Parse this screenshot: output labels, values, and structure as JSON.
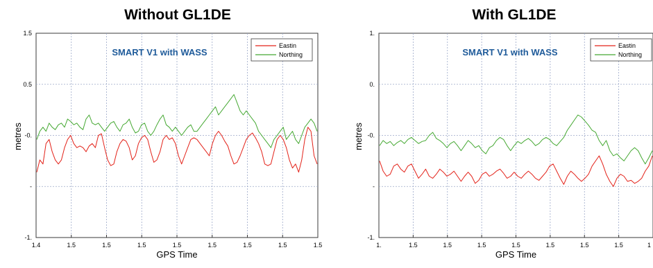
{
  "chart_data": [
    {
      "type": "line",
      "title": "Without GL1DE",
      "xlabel": "GPS Time",
      "ylabel": "metres",
      "x_tick_labels": [
        "1.4",
        "1.5",
        "1.5",
        "1.5",
        "1.5",
        "1.5",
        "1.5",
        "1.5",
        "1.5"
      ],
      "y_tick_labels": [
        "1.5",
        "0.5",
        "-0.",
        "-",
        "-1."
      ],
      "ylim": [
        -1.0,
        1.5
      ],
      "grid": true,
      "legend": "top-right",
      "annotation": "SMART V1 with WASS",
      "series": [
        {
          "name": "Eastin",
          "color": "#e32118",
          "values": [
            -0.2,
            -0.05,
            -0.1,
            0.15,
            0.2,
            0.05,
            -0.05,
            -0.1,
            -0.05,
            0.1,
            0.2,
            0.25,
            0.15,
            0.1,
            0.12,
            0.1,
            0.05,
            0.12,
            0.15,
            0.1,
            0.25,
            0.27,
            0.1,
            -0.05,
            -0.12,
            -0.1,
            0.05,
            0.15,
            0.2,
            0.18,
            0.1,
            -0.05,
            0.0,
            0.15,
            0.22,
            0.25,
            0.2,
            0.05,
            -0.08,
            -0.05,
            0.05,
            0.2,
            0.25,
            0.2,
            0.22,
            0.15,
            0.0,
            -0.1,
            0.0,
            0.1,
            0.2,
            0.22,
            0.2,
            0.15,
            0.1,
            0.05,
            0.0,
            0.15,
            0.25,
            0.3,
            0.25,
            0.18,
            0.12,
            0.0,
            -0.1,
            -0.08,
            0.0,
            0.1,
            0.2,
            0.25,
            0.28,
            0.22,
            0.15,
            0.05,
            -0.1,
            -0.12,
            -0.1,
            0.05,
            0.2,
            0.25,
            0.2,
            0.1,
            -0.05,
            -0.15,
            -0.1,
            -0.2,
            -0.05,
            0.2,
            0.35,
            0.3,
            0.0,
            -0.1
          ]
        },
        {
          "name": "Northing",
          "color": "#45a832",
          "values": [
            0.2,
            0.3,
            0.35,
            0.3,
            0.4,
            0.35,
            0.32,
            0.38,
            0.4,
            0.35,
            0.45,
            0.42,
            0.38,
            0.4,
            0.35,
            0.32,
            0.45,
            0.5,
            0.4,
            0.38,
            0.4,
            0.35,
            0.3,
            0.35,
            0.4,
            0.42,
            0.35,
            0.3,
            0.38,
            0.4,
            0.45,
            0.35,
            0.28,
            0.3,
            0.38,
            0.4,
            0.3,
            0.25,
            0.3,
            0.38,
            0.45,
            0.5,
            0.38,
            0.35,
            0.3,
            0.35,
            0.3,
            0.25,
            0.3,
            0.35,
            0.38,
            0.3,
            0.3,
            0.35,
            0.4,
            0.45,
            0.5,
            0.55,
            0.6,
            0.5,
            0.55,
            0.6,
            0.65,
            0.7,
            0.75,
            0.65,
            0.55,
            0.5,
            0.55,
            0.5,
            0.45,
            0.4,
            0.3,
            0.25,
            0.2,
            0.15,
            0.1,
            0.2,
            0.25,
            0.3,
            0.35,
            0.2,
            0.25,
            0.3,
            0.2,
            0.15,
            0.25,
            0.35,
            0.4,
            0.45,
            0.4,
            0.3
          ]
        }
      ]
    },
    {
      "type": "line",
      "title": "With GL1DE",
      "xlabel": "GPS Time",
      "ylabel": "metres",
      "x_tick_labels": [
        "1.",
        "1.5",
        "1.5",
        "1.5",
        "1.5",
        "1.5",
        "1.5",
        "1.5",
        "1"
      ],
      "y_tick_labels": [
        "1.",
        "0.",
        "-0.",
        "-",
        "-1."
      ],
      "ylim": [
        -1.0,
        1.0
      ],
      "grid": true,
      "legend": "top-right",
      "annotation": "SMART V1 with WASS",
      "series": [
        {
          "name": "Eastin",
          "color": "#e32118",
          "values": [
            -0.25,
            -0.35,
            -0.4,
            -0.38,
            -0.3,
            -0.28,
            -0.33,
            -0.36,
            -0.3,
            -0.28,
            -0.35,
            -0.42,
            -0.38,
            -0.33,
            -0.4,
            -0.42,
            -0.38,
            -0.33,
            -0.36,
            -0.4,
            -0.38,
            -0.35,
            -0.4,
            -0.45,
            -0.4,
            -0.36,
            -0.4,
            -0.47,
            -0.44,
            -0.38,
            -0.36,
            -0.4,
            -0.38,
            -0.35,
            -0.33,
            -0.37,
            -0.42,
            -0.4,
            -0.36,
            -0.4,
            -0.42,
            -0.38,
            -0.35,
            -0.38,
            -0.42,
            -0.44,
            -0.4,
            -0.36,
            -0.3,
            -0.28,
            -0.35,
            -0.42,
            -0.48,
            -0.4,
            -0.35,
            -0.38,
            -0.42,
            -0.45,
            -0.42,
            -0.38,
            -0.3,
            -0.25,
            -0.2,
            -0.28,
            -0.38,
            -0.45,
            -0.5,
            -0.42,
            -0.38,
            -0.4,
            -0.45,
            -0.44,
            -0.47,
            -0.45,
            -0.42,
            -0.35,
            -0.3,
            -0.2
          ]
        },
        {
          "name": "Northing",
          "color": "#45a832",
          "values": [
            -0.1,
            -0.05,
            -0.08,
            -0.06,
            -0.1,
            -0.07,
            -0.05,
            -0.08,
            -0.04,
            -0.02,
            -0.05,
            -0.08,
            -0.06,
            -0.05,
            0.0,
            0.03,
            -0.03,
            -0.05,
            -0.08,
            -0.12,
            -0.08,
            -0.06,
            -0.1,
            -0.15,
            -0.1,
            -0.05,
            -0.08,
            -0.12,
            -0.1,
            -0.15,
            -0.18,
            -0.12,
            -0.1,
            -0.05,
            -0.02,
            -0.04,
            -0.1,
            -0.15,
            -0.1,
            -0.06,
            -0.08,
            -0.05,
            -0.03,
            -0.06,
            -0.1,
            -0.08,
            -0.04,
            -0.02,
            -0.04,
            -0.08,
            -0.1,
            -0.06,
            -0.02,
            0.05,
            0.1,
            0.15,
            0.2,
            0.18,
            0.14,
            0.1,
            0.05,
            0.03,
            -0.05,
            -0.1,
            -0.05,
            -0.15,
            -0.2,
            -0.18,
            -0.22,
            -0.25,
            -0.2,
            -0.15,
            -0.12,
            -0.15,
            -0.22,
            -0.28,
            -0.22,
            -0.15
          ]
        }
      ]
    }
  ]
}
